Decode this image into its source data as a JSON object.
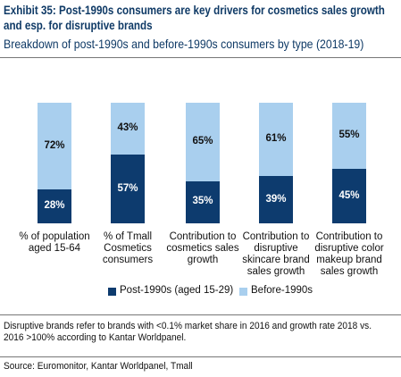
{
  "chart_data": {
    "type": "stacked_bar",
    "title": "Exhibit 35: Post-1990s consumers are key drivers for cosmetics sales growth and esp. for disruptive brands",
    "subtitle": "Breakdown of post-1990s and before-1990s consumers by type (2018-19)",
    "categories": [
      "% of population aged 15-64",
      "% of Tmall Cosmetics consumers",
      "Contribution to cosmetics sales growth",
      "Contribution to disruptive skincare brand sales growth",
      "Contribution to disruptive color makeup brand sales growth"
    ],
    "series": [
      {
        "name": "Post-1990s (aged 15-29)",
        "color": "#0d3b6e",
        "values": [
          28,
          57,
          35,
          39,
          45
        ],
        "value_labels": [
          "28%",
          "57%",
          "35%",
          "39%",
          "45%"
        ]
      },
      {
        "name": "Before-1990s",
        "color": "#a9cfee",
        "values": [
          72,
          43,
          65,
          61,
          55
        ],
        "value_labels": [
          "72%",
          "43%",
          "65%",
          "61%",
          "55%"
        ]
      }
    ],
    "ylim": [
      0,
      100
    ],
    "legend": "bottom",
    "note": "Disruptive brands refer to brands with <0.1% market share in 2016 and growth rate 2018 vs. 2016 >100% according to Kantar Worldpanel.",
    "source": "Source: Euromonitor, Kantar Worldpanel, Tmall"
  }
}
